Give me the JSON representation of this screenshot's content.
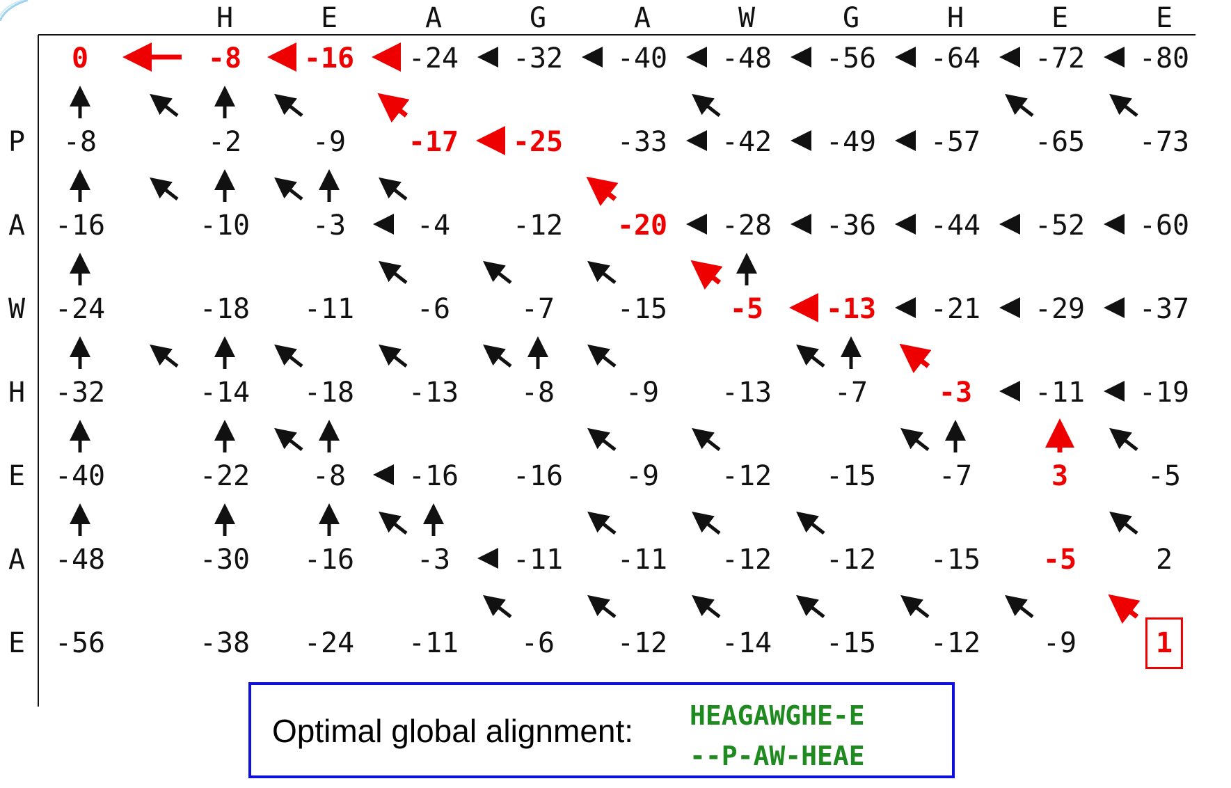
{
  "column_header": [
    "H",
    "E",
    "A",
    "G",
    "A",
    "W",
    "G",
    "H",
    "E",
    "E"
  ],
  "row_header": [
    "P",
    "A",
    "W",
    "H",
    "E",
    "A",
    "E"
  ],
  "matrix": [
    [
      "0",
      "-8",
      "-16",
      "-24",
      "-32",
      "-40",
      "-48",
      "-56",
      "-64",
      "-72",
      "-80"
    ],
    [
      "-8",
      "-2",
      "-9",
      "-17",
      "-25",
      "-33",
      "-42",
      "-49",
      "-57",
      "-65",
      "-73"
    ],
    [
      "-16",
      "-10",
      "-3",
      "-4",
      "-12",
      "-20",
      "-28",
      "-36",
      "-44",
      "-52",
      "-60"
    ],
    [
      "-24",
      "-18",
      "-11",
      "-6",
      "-7",
      "-15",
      "-5",
      "-13",
      "-21",
      "-29",
      "-37"
    ],
    [
      "-32",
      "-14",
      "-18",
      "-13",
      "-8",
      "-9",
      "-13",
      "-7",
      "-3",
      "-11",
      "-19"
    ],
    [
      "-40",
      "-22",
      "-8",
      "-16",
      "-16",
      "-9",
      "-12",
      "-15",
      "-7",
      "3",
      "-5"
    ],
    [
      "-48",
      "-30",
      "-16",
      "-3",
      "-11",
      "-11",
      "-12",
      "-12",
      "-15",
      "-5",
      "2"
    ],
    [
      "-56",
      "-38",
      "-24",
      "-11",
      "-6",
      "-12",
      "-14",
      "-15",
      "-12",
      "-9",
      "1"
    ]
  ],
  "path_cells": [
    [
      0,
      0
    ],
    [
      0,
      1
    ],
    [
      0,
      2
    ],
    [
      1,
      3
    ],
    [
      1,
      4
    ],
    [
      2,
      5
    ],
    [
      3,
      6
    ],
    [
      3,
      7
    ],
    [
      4,
      8
    ],
    [
      5,
      9
    ],
    [
      6,
      9
    ],
    [
      7,
      10
    ]
  ],
  "final_cell": [
    7,
    10
  ],
  "arrows": {
    "left": [
      [
        0,
        1,
        1
      ],
      [
        0,
        2,
        1
      ],
      [
        0,
        3,
        1
      ],
      [
        0,
        4,
        0
      ],
      [
        0,
        5,
        0
      ],
      [
        0,
        6,
        0
      ],
      [
        0,
        7,
        0
      ],
      [
        0,
        8,
        0
      ],
      [
        0,
        9,
        0
      ],
      [
        0,
        10,
        0
      ],
      [
        1,
        4,
        1
      ],
      [
        1,
        6,
        0
      ],
      [
        1,
        7,
        0
      ],
      [
        1,
        8,
        0
      ],
      [
        2,
        3,
        0
      ],
      [
        2,
        6,
        0
      ],
      [
        2,
        7,
        0
      ],
      [
        2,
        8,
        0
      ],
      [
        2,
        9,
        0
      ],
      [
        2,
        10,
        0
      ],
      [
        3,
        7,
        1
      ],
      [
        3,
        8,
        0
      ],
      [
        3,
        9,
        0
      ],
      [
        3,
        10,
        0
      ],
      [
        4,
        9,
        0
      ],
      [
        4,
        10,
        0
      ],
      [
        5,
        3,
        0
      ],
      [
        6,
        4,
        0
      ]
    ],
    "up": [
      [
        1,
        0,
        0
      ],
      [
        1,
        1,
        0
      ],
      [
        2,
        0,
        0
      ],
      [
        2,
        1,
        0
      ],
      [
        2,
        2,
        0
      ],
      [
        3,
        0,
        0
      ],
      [
        3,
        6,
        0
      ],
      [
        4,
        0,
        0
      ],
      [
        4,
        1,
        0
      ],
      [
        4,
        4,
        0
      ],
      [
        4,
        7,
        0
      ],
      [
        5,
        0,
        0
      ],
      [
        5,
        1,
        0
      ],
      [
        5,
        2,
        0
      ],
      [
        5,
        8,
        0
      ],
      [
        5,
        9,
        1
      ],
      [
        6,
        0,
        0
      ],
      [
        6,
        1,
        0
      ],
      [
        6,
        2,
        0
      ],
      [
        6,
        3,
        0
      ]
    ],
    "diag": [
      [
        1,
        1,
        0
      ],
      [
        1,
        2,
        0
      ],
      [
        1,
        6,
        0
      ],
      [
        1,
        9,
        0
      ],
      [
        1,
        10,
        0
      ],
      [
        1,
        3,
        1
      ],
      [
        2,
        1,
        0
      ],
      [
        2,
        2,
        0
      ],
      [
        2,
        3,
        0
      ],
      [
        2,
        5,
        1
      ],
      [
        3,
        3,
        0
      ],
      [
        3,
        4,
        0
      ],
      [
        3,
        5,
        0
      ],
      [
        3,
        6,
        1
      ],
      [
        4,
        1,
        0
      ],
      [
        4,
        2,
        0
      ],
      [
        4,
        3,
        0
      ],
      [
        4,
        4,
        0
      ],
      [
        4,
        5,
        0
      ],
      [
        4,
        7,
        0
      ],
      [
        4,
        8,
        1
      ],
      [
        5,
        2,
        0
      ],
      [
        5,
        5,
        0
      ],
      [
        5,
        6,
        0
      ],
      [
        5,
        8,
        0
      ],
      [
        5,
        10,
        0
      ],
      [
        6,
        3,
        0
      ],
      [
        6,
        5,
        0
      ],
      [
        6,
        6,
        0
      ],
      [
        6,
        7,
        0
      ],
      [
        6,
        10,
        0
      ],
      [
        7,
        4,
        0
      ],
      [
        7,
        5,
        0
      ],
      [
        7,
        6,
        0
      ],
      [
        7,
        7,
        0
      ],
      [
        7,
        8,
        0
      ],
      [
        7,
        9,
        0
      ],
      [
        7,
        10,
        1
      ]
    ]
  },
  "alignment": {
    "label": "Optimal global alignment:",
    "top": "HEAGAWGHE-E",
    "bottom": "--P-AW-HEAE"
  },
  "colors": {
    "path": "#ee0000",
    "normal": "#111111",
    "box_border": "#1010dd",
    "alignment_text": "#1f8a1f"
  }
}
